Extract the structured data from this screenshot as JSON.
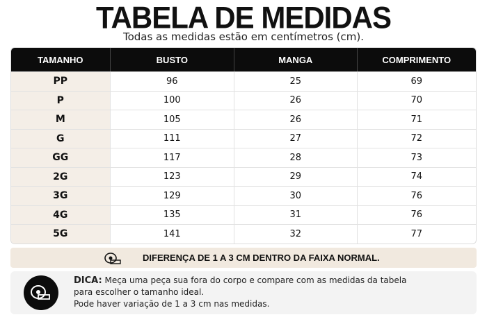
{
  "header": {
    "title": "TABELA DE MEDIDAS",
    "subtitle": "Todas as medidas estão em centímetros (cm)."
  },
  "table": {
    "columns": [
      "TAMANHO",
      "BUSTO",
      "MANGA",
      "COMPRIMENTO"
    ],
    "rows": [
      [
        "PP",
        96,
        25,
        69
      ],
      [
        "P",
        100,
        26,
        70
      ],
      [
        "M",
        105,
        26,
        71
      ],
      [
        "G",
        111,
        27,
        72
      ],
      [
        "GG",
        117,
        28,
        73
      ],
      [
        "2G",
        123,
        29,
        74
      ],
      [
        "3G",
        129,
        30,
        76
      ],
      [
        "4G",
        135,
        31,
        76
      ],
      [
        "5G",
        141,
        32,
        77
      ]
    ]
  },
  "notice": "DIFERENÇA DE 1 A 3 CM DENTRO DA FAIXA NORMAL.",
  "tip": {
    "label": "DICA:",
    "lines": [
      "Meça uma peça sua fora do corpo e compare com as medidas da tabela",
      "para escolher o tamanho ideal.",
      "Pode haver variação de 1 a 3 cm nas medidas."
    ]
  }
}
